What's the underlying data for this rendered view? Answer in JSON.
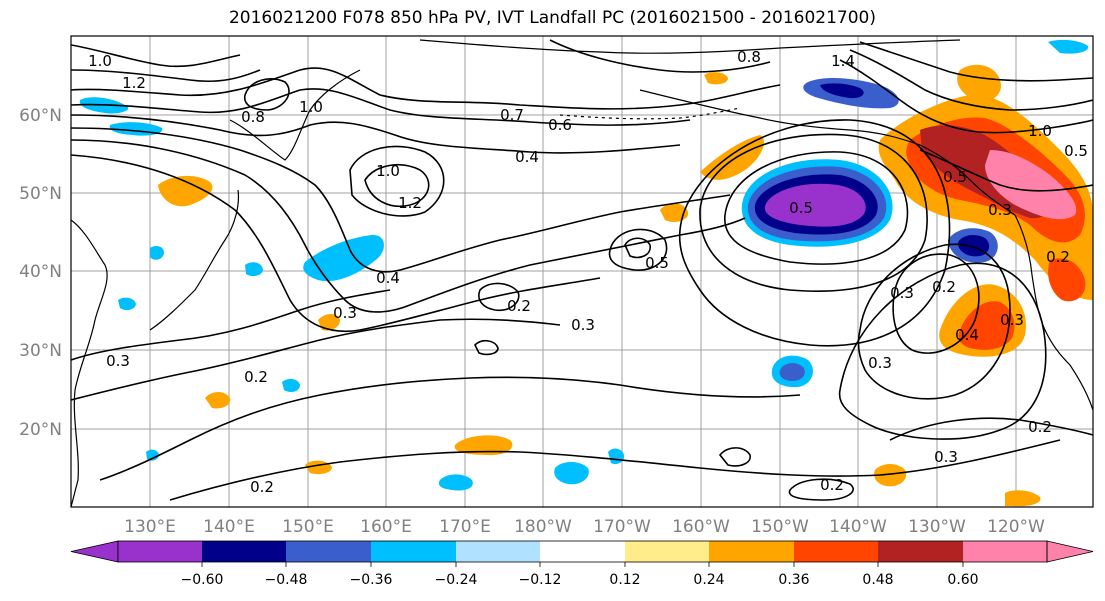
{
  "title": "2016021200 F078 850 hPa PV, IVT Landfall PC (2016021500 - 2016021700)",
  "latitude_labels": [
    "60°N",
    "50°N",
    "40°N",
    "30°N",
    "20°N"
  ],
  "longitude_labels": [
    "130°E",
    "140°E",
    "150°E",
    "160°E",
    "170°E",
    "180°W",
    "170°W",
    "160°W",
    "150°W",
    "140°W",
    "130°W",
    "120°W"
  ],
  "colorbar": {
    "tick_labels": [
      "−0.60",
      "−0.48",
      "−0.36",
      "−0.24",
      "−0.12",
      "0.12",
      "0.24",
      "0.36",
      "0.48",
      "0.60"
    ],
    "colors": [
      "#9932cc",
      "#00008b",
      "#3a5fcd",
      "#00bfff",
      "#b0e2ff",
      "#ffffff",
      "#ffec8b",
      "#ffa500",
      "#ff4500",
      "#b22222",
      "#ff82ab"
    ]
  },
  "contour_labels": [
    "1.0",
    "1.2",
    "0.8",
    "1.0",
    "0.7",
    "0.6",
    "0.4",
    "1.0",
    "1.2",
    "0.4",
    "0.3",
    "0.2",
    "0.3",
    "0.5",
    "0.2",
    "0.5",
    "0.8",
    "1.4",
    "0.5",
    "1.0",
    "0.5",
    "0.2",
    "0.3",
    "0.4",
    "0.3",
    "0.3",
    "0.2",
    "0.3",
    "0.2",
    "0.2",
    "0.3",
    "0.3",
    "0.2"
  ]
}
